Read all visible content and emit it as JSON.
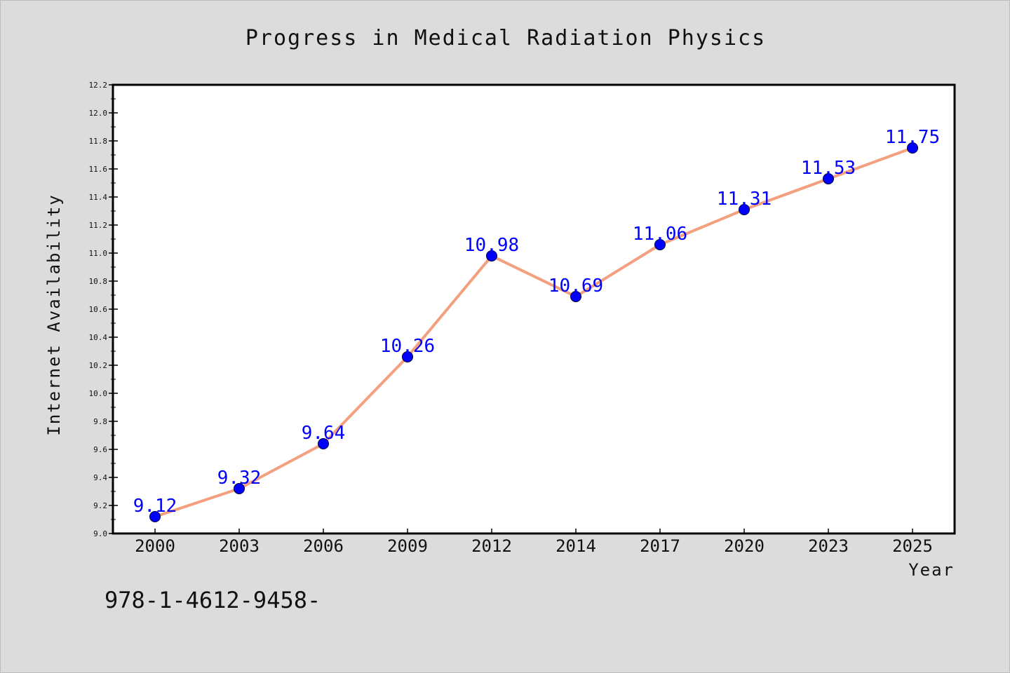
{
  "chart_data": {
    "type": "line",
    "title": "Progress in Medical Radiation Physics",
    "xlabel": "Year",
    "ylabel": "Internet Availability",
    "categories": [
      "2000",
      "2003",
      "2006",
      "2009",
      "2012",
      "2014",
      "2017",
      "2020",
      "2023",
      "2025"
    ],
    "series": [
      {
        "values": [
          9.12,
          9.32,
          9.64,
          10.26,
          10.98,
          10.69,
          11.06,
          11.31,
          11.53,
          11.75
        ],
        "data_labels": [
          "9.12",
          "9.32",
          "9.64",
          "10.26",
          "10.98",
          "10.69",
          "11.06",
          "11.31",
          "11.53",
          "11.75"
        ],
        "line_color": "#f4a07e",
        "marker_color": "#0000ff"
      }
    ],
    "ylim": [
      9.0,
      12.2
    ],
    "yticks": [
      "9.0",
      "9.2",
      "9.4",
      "9.6",
      "9.8",
      "10.0",
      "10.2",
      "10.4",
      "10.6",
      "10.8",
      "11.0",
      "11.2",
      "11.4",
      "11.6",
      "11.8",
      "12.0",
      "12.2"
    ],
    "grid": false,
    "legend": "none"
  },
  "footer": {
    "text": "978-1-4612-9458-"
  },
  "colors": {
    "background": "#dcdcdc",
    "plot_background": "#ffffff",
    "line": "#f4a07e",
    "marker": "#0000ff",
    "data_label": "#0000ff"
  }
}
